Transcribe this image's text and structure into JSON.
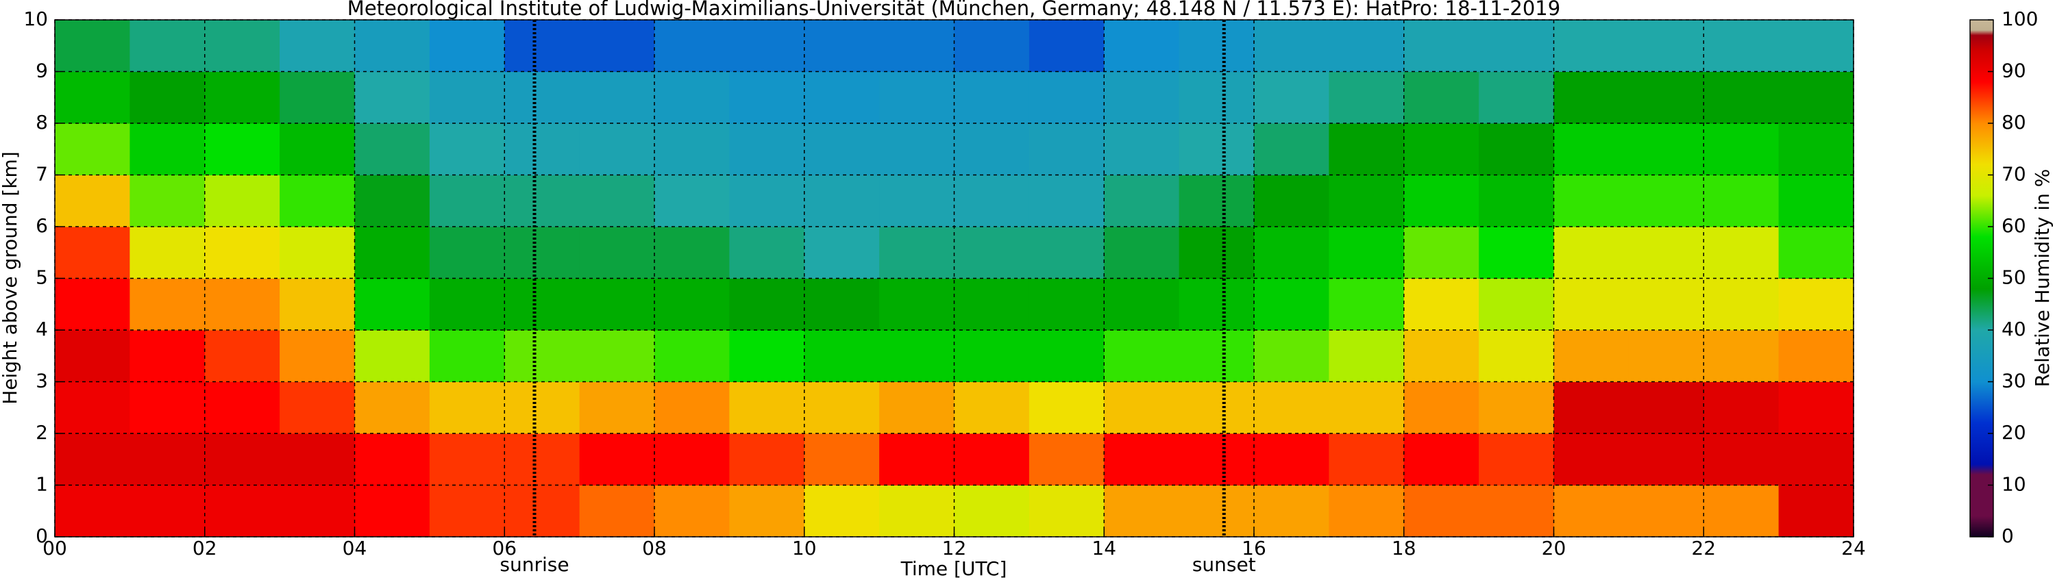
{
  "chart_data": {
    "type": "heatmap",
    "title": "Meteorological Institute of Ludwig-Maximilians-Universität (München, Germany; 48.148 N / 11.573 E):    HatPro: 18-11-2019",
    "xlabel": "Time [UTC]",
    "ylabel": "Height above ground [km]",
    "colorbar_label": "Relative Humidity in %",
    "xbins": [
      0,
      1,
      2,
      3,
      4,
      5,
      6,
      7,
      8,
      9,
      10,
      11,
      12,
      13,
      14,
      15,
      16,
      17,
      18,
      19,
      20,
      21,
      22,
      23,
      24
    ],
    "ybins": [
      0,
      1,
      2,
      3,
      4,
      5,
      6,
      7,
      8,
      9,
      10
    ],
    "values": [
      [
        90,
        90,
        90,
        90,
        88,
        85,
        85,
        82,
        80,
        78,
        72,
        70,
        68,
        70,
        78,
        78,
        78,
        80,
        82,
        82,
        80,
        80,
        80,
        92
      ],
      [
        92,
        92,
        92,
        92,
        88,
        85,
        85,
        88,
        88,
        85,
        82,
        88,
        88,
        82,
        88,
        88,
        88,
        85,
        88,
        85,
        92,
        92,
        92,
        92
      ],
      [
        90,
        88,
        88,
        85,
        78,
        75,
        75,
        78,
        80,
        75,
        75,
        78,
        75,
        72,
        75,
        75,
        75,
        75,
        80,
        78,
        93,
        93,
        92,
        90
      ],
      [
        92,
        88,
        85,
        80,
        65,
        60,
        62,
        62,
        60,
        58,
        55,
        55,
        55,
        55,
        60,
        60,
        62,
        65,
        75,
        70,
        78,
        78,
        78,
        80
      ],
      [
        88,
        80,
        80,
        75,
        55,
        50,
        50,
        50,
        50,
        48,
        48,
        50,
        50,
        50,
        50,
        52,
        55,
        60,
        72,
        65,
        70,
        70,
        70,
        72
      ],
      [
        85,
        70,
        72,
        68,
        50,
        45,
        45,
        45,
        45,
        42,
        40,
        42,
        42,
        42,
        45,
        48,
        52,
        55,
        62,
        58,
        68,
        68,
        68,
        60
      ],
      [
        75,
        62,
        65,
        60,
        47,
        42,
        42,
        42,
        40,
        38,
        38,
        38,
        38,
        38,
        42,
        45,
        48,
        50,
        55,
        52,
        60,
        60,
        60,
        55
      ],
      [
        62,
        55,
        58,
        52,
        43,
        40,
        38,
        38,
        37,
        35,
        35,
        35,
        35,
        36,
        38,
        40,
        43,
        48,
        50,
        48,
        55,
        55,
        55,
        52
      ],
      [
        52,
        48,
        50,
        45,
        40,
        36,
        35,
        35,
        34,
        32,
        32,
        33,
        33,
        33,
        35,
        37,
        40,
        42,
        44,
        42,
        48,
        48,
        48,
        48
      ],
      [
        45,
        42,
        42,
        38,
        35,
        30,
        25,
        25,
        28,
        28,
        28,
        28,
        27,
        25,
        30,
        32,
        35,
        35,
        38,
        38,
        40,
        40,
        40,
        40
      ]
    ],
    "xlim": [
      0,
      24
    ],
    "xticks": [
      {
        "value": 0,
        "label": "00"
      },
      {
        "value": 2,
        "label": "02"
      },
      {
        "value": 4,
        "label": "04"
      },
      {
        "value": 6,
        "label": "06"
      },
      {
        "value": 8,
        "label": "08"
      },
      {
        "value": 10,
        "label": "10"
      },
      {
        "value": 12,
        "label": "12"
      },
      {
        "value": 14,
        "label": "14"
      },
      {
        "value": 16,
        "label": "16"
      },
      {
        "value": 18,
        "label": "18"
      },
      {
        "value": 20,
        "label": "20"
      },
      {
        "value": 22,
        "label": "22"
      },
      {
        "value": 24,
        "label": "24"
      }
    ],
    "ylim": [
      0,
      10
    ],
    "yticks": [
      0,
      1,
      2,
      3,
      4,
      5,
      6,
      7,
      8,
      9,
      10
    ],
    "clim": [
      0,
      100
    ],
    "cticks": [
      0,
      10,
      20,
      30,
      40,
      50,
      60,
      70,
      80,
      90,
      100
    ],
    "colorscale": [
      [
        0,
        "#100020"
      ],
      [
        4,
        "#6a0b45"
      ],
      [
        12,
        "#6a0b45"
      ],
      [
        14,
        "#0010b0"
      ],
      [
        22,
        "#0030d0"
      ],
      [
        30,
        "#1090d0"
      ],
      [
        40,
        "#20a8a8"
      ],
      [
        48,
        "#00a000"
      ],
      [
        58,
        "#00e000"
      ],
      [
        66,
        "#c8f000"
      ],
      [
        72,
        "#f0e000"
      ],
      [
        80,
        "#ff8c00"
      ],
      [
        88,
        "#ff0000"
      ],
      [
        94,
        "#d00000"
      ],
      [
        97,
        "#a00010"
      ],
      [
        98,
        "#c0b090"
      ],
      [
        100,
        "#c8b898"
      ]
    ],
    "grid": true,
    "annotations": [
      {
        "text": "sunrise",
        "x": 6.4
      },
      {
        "text": "sunset",
        "x": 15.6
      }
    ]
  }
}
